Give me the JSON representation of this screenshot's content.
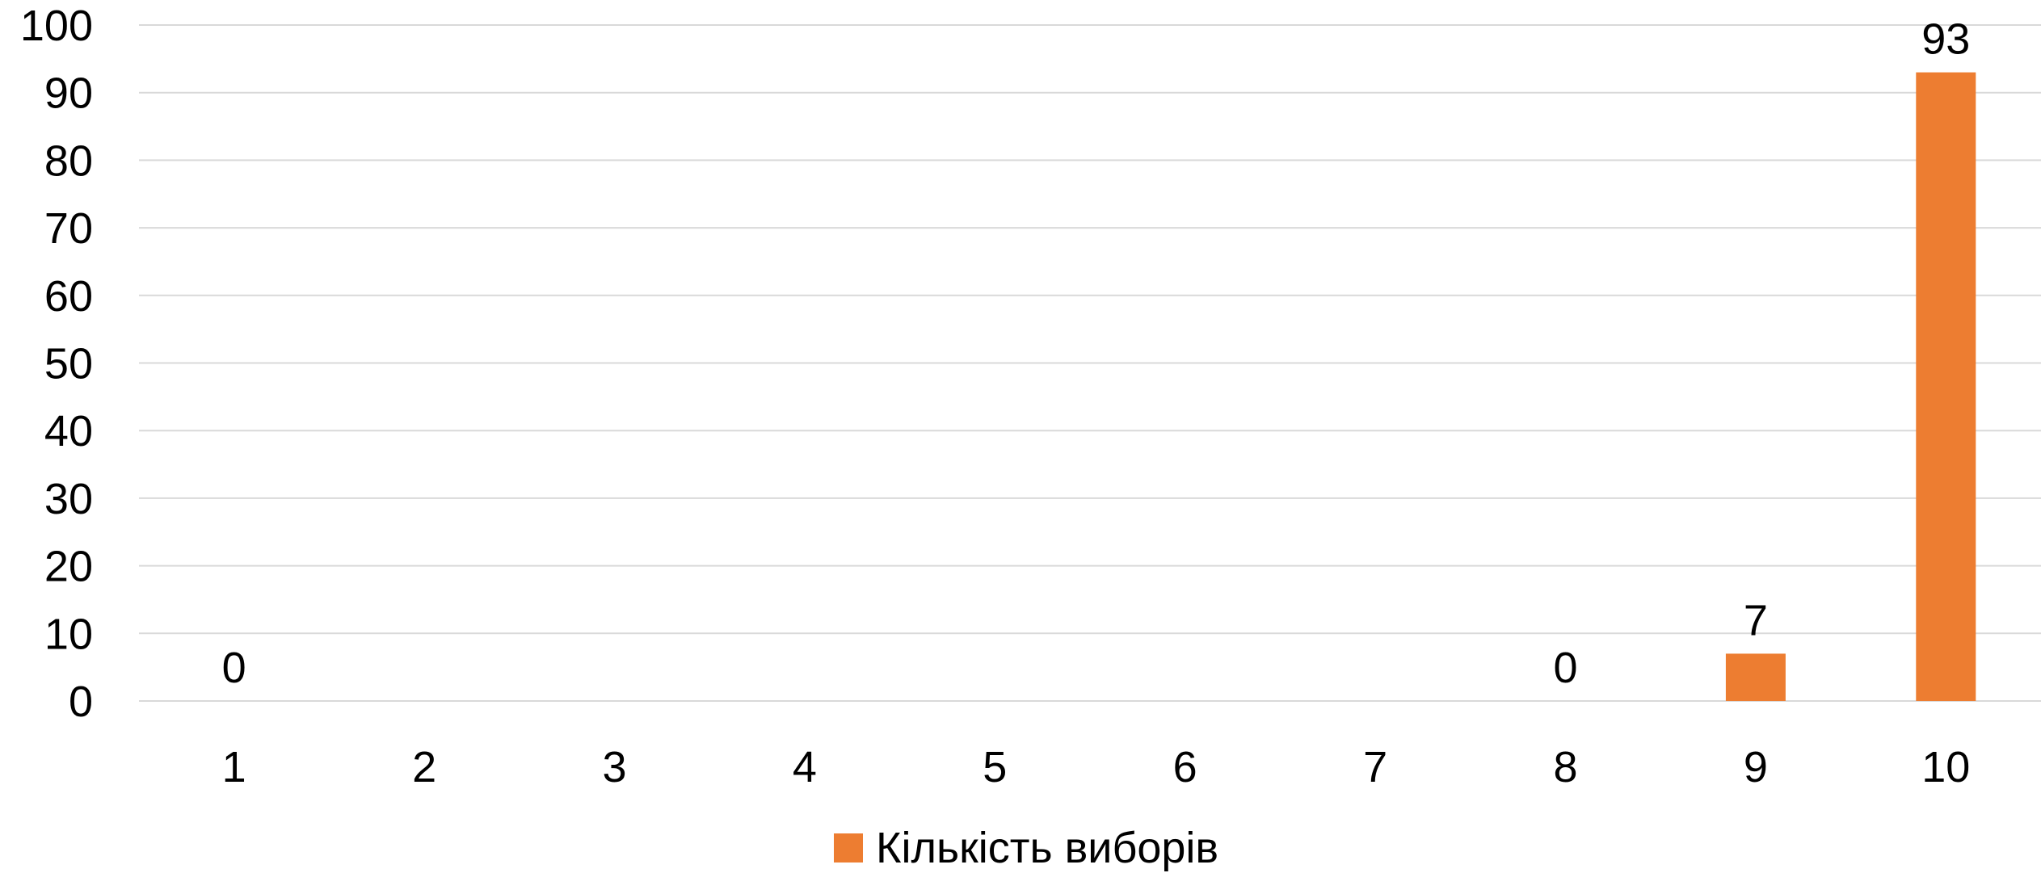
{
  "chart_data": {
    "type": "bar",
    "categories": [
      "1",
      "2",
      "3",
      "4",
      "5",
      "6",
      "7",
      "8",
      "9",
      "10"
    ],
    "series": [
      {
        "name": "Кількість виборів",
        "values": [
          0,
          null,
          null,
          null,
          null,
          null,
          null,
          0,
          7,
          93
        ],
        "color": "#ED7D31"
      }
    ],
    "data_labels": [
      "0",
      "",
      "",
      "",
      "",
      "",
      "",
      "0",
      "7",
      "93"
    ],
    "title": "",
    "xlabel": "",
    "ylabel": "",
    "ylim": [
      0,
      100
    ],
    "yticks": [
      0,
      10,
      20,
      30,
      40,
      50,
      60,
      70,
      80,
      90,
      100
    ],
    "grid": true,
    "legend_position": "bottom"
  }
}
